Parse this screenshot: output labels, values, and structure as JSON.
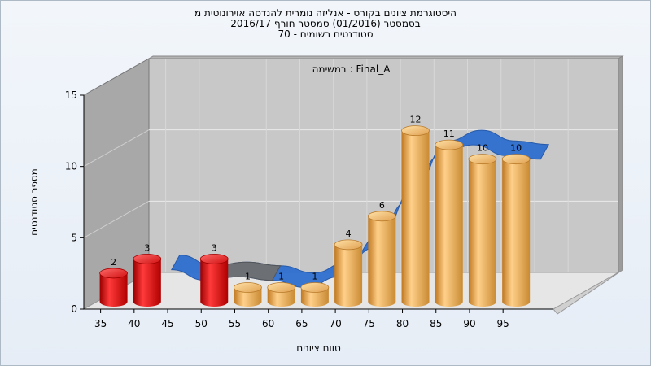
{
  "title_lines": [
    "היסטוגרמת ציונים בקורס - אנליזה נומרית להנדסה אוירונוטית מ",
    "בסמסטר (01/2016) סמסטר חורף 2016/17",
    "סטודנטים רשומים - 70"
  ],
  "chart_data": {
    "type": "bar",
    "xlabel": "טווח ציונים",
    "ylabel": "מספר סטודנטים",
    "annotation": "במשימה : Final_A",
    "x_ticks": [
      "35",
      "40",
      "45",
      "50",
      "55",
      "60",
      "65",
      "70",
      "75",
      "80",
      "85",
      "90",
      "95"
    ],
    "y_ticks": [
      "0",
      "5",
      "10",
      "15"
    ],
    "ylim": [
      0,
      15
    ],
    "bars": [
      {
        "x": 35,
        "value": 2,
        "label": "2"
      },
      {
        "x": 40,
        "value": 3,
        "label": "3"
      },
      {
        "x": 50,
        "value": 3,
        "label": "3"
      },
      {
        "x": 55,
        "value": 1,
        "label": "1"
      },
      {
        "x": 60,
        "value": 1,
        "label": "1"
      },
      {
        "x": 65,
        "value": 1,
        "label": "1"
      },
      {
        "x": 70,
        "value": 4,
        "label": "4"
      },
      {
        "x": 75,
        "value": 6,
        "label": "6"
      },
      {
        "x": 80,
        "value": 12,
        "label": "12"
      },
      {
        "x": 85,
        "value": 11,
        "label": "11"
      },
      {
        "x": 90,
        "value": 10,
        "label": "10"
      },
      {
        "x": 95,
        "value": 10,
        "label": "10"
      }
    ],
    "fail_threshold": 55,
    "ribbon_note": "smoothed distribution ribbon (blue, gray segment 45-55)",
    "colors": {
      "fail_bar": "#e01010",
      "pass_bar": "#e8a44a",
      "ribbon": "#2f6fd0",
      "ribbon_gray": "#6f6f6f",
      "plot_back": "#c8c8c8",
      "plot_side": "#a8a8a8",
      "plot_floor": "#e6e6e6"
    },
    "grid": true
  }
}
